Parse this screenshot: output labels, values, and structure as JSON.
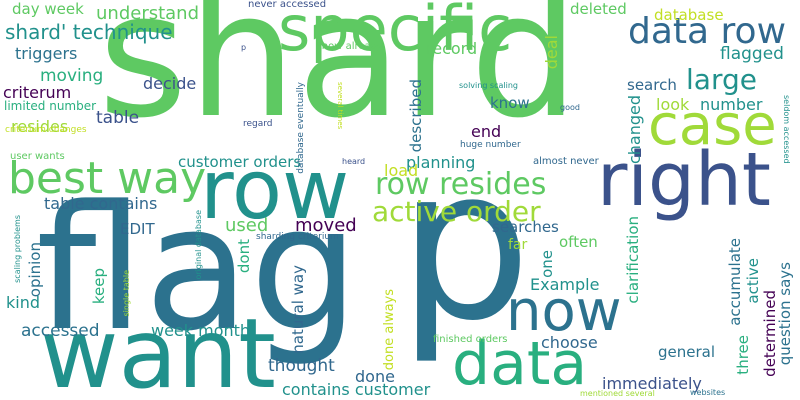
{
  "words": [
    {
      "id": "shard",
      "text": "shard",
      "color": "#5ec962"
    },
    {
      "id": "flag",
      "text": "flag",
      "color": "#2c728e"
    },
    {
      "id": "p",
      "text": "p",
      "color": "#2c728e"
    },
    {
      "id": "want",
      "text": "want",
      "color": "#21918c"
    },
    {
      "id": "row",
      "text": "row",
      "color": "#21918c"
    },
    {
      "id": "right",
      "text": "right",
      "color": "#3b528b"
    },
    {
      "id": "specific",
      "text": "specific",
      "color": "#5ec962"
    },
    {
      "id": "case",
      "text": "case",
      "color": "#a0da39"
    },
    {
      "id": "now",
      "text": "now",
      "color": "#2c728e"
    },
    {
      "id": "data",
      "text": "data",
      "color": "#29af7f"
    },
    {
      "id": "best-way",
      "text": "best way",
      "color": "#5ec962"
    },
    {
      "id": "data-row",
      "text": "data row",
      "color": "#31688e"
    },
    {
      "id": "active-order",
      "text": "active order",
      "color": "#a0da39"
    },
    {
      "id": "row-resides",
      "text": "row resides",
      "color": "#5ec962"
    },
    {
      "id": "large",
      "text": "large",
      "color": "#21918c"
    },
    {
      "id": "shard-technique",
      "text": "shard' technique",
      "color": "#21918c"
    },
    {
      "id": "understand",
      "text": "understand",
      "color": "#5ec962"
    },
    {
      "id": "day-week",
      "text": "day week",
      "color": "#5ec962"
    },
    {
      "id": "triggers",
      "text": "triggers",
      "color": "#2c728e"
    },
    {
      "id": "moving",
      "text": "moving",
      "color": "#29af7f"
    },
    {
      "id": "criterum",
      "text": "criterum",
      "color": "#440154"
    },
    {
      "id": "limited-number",
      "text": "limited number",
      "color": "#29af7f"
    },
    {
      "id": "table",
      "text": "table",
      "color": "#3b528b"
    },
    {
      "id": "resides",
      "text": "resides",
      "color": "#a0da39"
    },
    {
      "id": "criterium-changes",
      "text": "criterium changes",
      "color": "#c2df23"
    },
    {
      "id": "user-wants",
      "text": "user wants",
      "color": "#5ec962"
    },
    {
      "id": "table-contains",
      "text": "table contains",
      "color": "#31688e"
    },
    {
      "id": "opinion",
      "text": "opinion",
      "color": "#2c728e"
    },
    {
      "id": "kind",
      "text": "kind",
      "color": "#21918c"
    },
    {
      "id": "accessed",
      "text": "accessed",
      "color": "#2c728e"
    },
    {
      "id": "scaling-problems",
      "text": "scaling problems",
      "color": "#21918c"
    },
    {
      "id": "single-table",
      "text": "single table",
      "color": "#a0da39"
    },
    {
      "id": "keep",
      "text": "keep",
      "color": "#29af7f"
    },
    {
      "id": "week-month",
      "text": "week month",
      "color": "#21918c"
    },
    {
      "id": "edit",
      "text": "EDIT",
      "color": "#31688e"
    },
    {
      "id": "original-database",
      "text": "original database",
      "color": "#21918c"
    },
    {
      "id": "used",
      "text": "used",
      "color": "#5ec962"
    },
    {
      "id": "moved",
      "text": "moved",
      "color": "#440154"
    },
    {
      "id": "dont",
      "text": "dont",
      "color": "#29af7f"
    },
    {
      "id": "natural-way",
      "text": "natural way",
      "color": "#31688e"
    },
    {
      "id": "thought",
      "text": "thought",
      "color": "#31688e"
    },
    {
      "id": "contains-customer",
      "text": "contains customer",
      "color": "#21918c"
    },
    {
      "id": "done",
      "text": "done",
      "color": "#31688e"
    },
    {
      "id": "done-always",
      "text": "done always",
      "color": "#c2df23"
    },
    {
      "id": "sharding-criterium",
      "text": "sharding criterium",
      "color": "#31688e"
    },
    {
      "id": "customer-orders",
      "text": "customer orders",
      "color": "#21918c"
    },
    {
      "id": "planning",
      "text": "planning",
      "color": "#21918c"
    },
    {
      "id": "load",
      "text": "load",
      "color": "#c2df23"
    },
    {
      "id": "far",
      "text": "far",
      "color": "#a0da39"
    },
    {
      "id": "searches",
      "text": "searches",
      "color": "#31688e"
    },
    {
      "id": "one",
      "text": "one",
      "color": "#21918c"
    },
    {
      "id": "example",
      "text": "Example",
      "color": "#21918c"
    },
    {
      "id": "choose",
      "text": "choose",
      "color": "#31688e"
    },
    {
      "id": "finished-orders",
      "text": "finished orders",
      "color": "#5ec962"
    },
    {
      "id": "mentioned-several",
      "text": "mentioned several",
      "color": "#a0da39"
    },
    {
      "id": "immediately",
      "text": "immediately",
      "color": "#3b528b"
    },
    {
      "id": "websites",
      "text": "websites",
      "color": "#2c728e"
    },
    {
      "id": "general",
      "text": "general",
      "color": "#2c728e"
    },
    {
      "id": "three",
      "text": "three",
      "color": "#29af7f"
    },
    {
      "id": "determined",
      "text": "determined",
      "color": "#440154"
    },
    {
      "id": "question-says",
      "text": "question says",
      "color": "#2c728e"
    },
    {
      "id": "accumulate",
      "text": "accumulate",
      "color": "#2c728e"
    },
    {
      "id": "active",
      "text": "active",
      "color": "#21918c"
    },
    {
      "id": "clarification",
      "text": "clarification",
      "color": "#29af7f"
    },
    {
      "id": "often",
      "text": "often",
      "color": "#5ec962"
    },
    {
      "id": "seldom-accessed",
      "text": "seldom accessed",
      "color": "#21918c"
    },
    {
      "id": "changed",
      "text": "changed",
      "color": "#21918c"
    },
    {
      "id": "described",
      "text": "described",
      "color": "#2c728e"
    },
    {
      "id": "end",
      "text": "end",
      "color": "#440154"
    },
    {
      "id": "huge-number",
      "text": "huge number",
      "color": "#31688e"
    },
    {
      "id": "almost-never",
      "text": "almost never",
      "color": "#31688e"
    },
    {
      "id": "heard",
      "text": "heard",
      "color": "#3b528b"
    },
    {
      "id": "know",
      "text": "know",
      "color": "#2c728e"
    },
    {
      "id": "look",
      "text": "look",
      "color": "#a0da39"
    },
    {
      "id": "number",
      "text": "number",
      "color": "#21918c"
    },
    {
      "id": "good",
      "text": "good",
      "color": "#31688e"
    },
    {
      "id": "solving-scaling",
      "text": "solving scaling",
      "color": "#21918c"
    },
    {
      "id": "several-times",
      "text": "several times",
      "color": "#c2df23"
    },
    {
      "id": "database-eventually",
      "text": "database eventually",
      "color": "#31688e"
    },
    {
      "id": "regard",
      "text": "regard",
      "color": "#3b528b"
    },
    {
      "id": "decide",
      "text": "decide",
      "color": "#3b528b"
    },
    {
      "id": "record",
      "text": "record",
      "color": "#5ec962"
    },
    {
      "id": "deal",
      "text": "deal",
      "color": "#a0da39"
    },
    {
      "id": "search",
      "text": "search",
      "color": "#31688e"
    },
    {
      "id": "flagged",
      "text": "flagged",
      "color": "#21918c"
    },
    {
      "id": "deleted",
      "text": "deleted",
      "color": "#5ec962"
    },
    {
      "id": "database",
      "text": "database",
      "color": "#c2df23"
    },
    {
      "id": "never-accessed",
      "text": "never accessed",
      "color": "#3b528b"
    },
    {
      "id": "know-already",
      "text": "know already",
      "color": "#5ec962"
    },
    {
      "id": "p-small",
      "text": "p",
      "color": "#3b528b"
    }
  ]
}
